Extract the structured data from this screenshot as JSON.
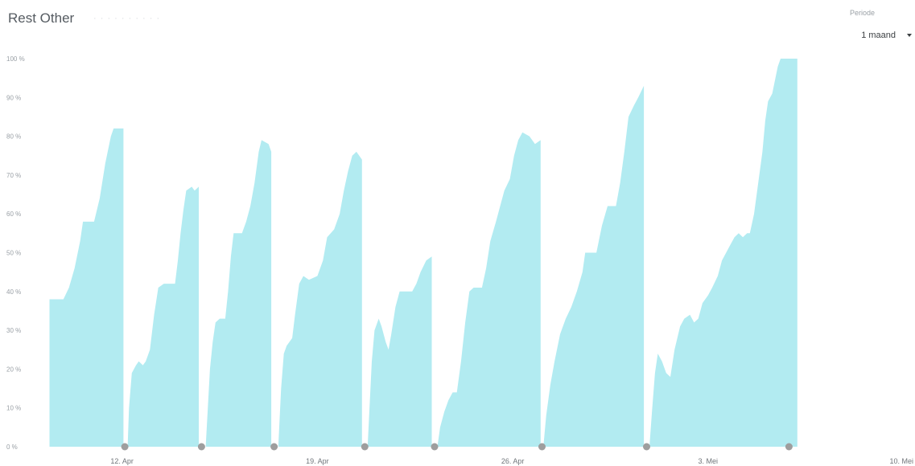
{
  "header": {
    "title": "Rest Other",
    "period": {
      "label": "Periode",
      "selected": "1 maand"
    }
  },
  "colors": {
    "area_fill": "#b2ebf1",
    "gap_marker": "#9e9e9e",
    "tick_text": "#9aa0a6"
  },
  "chart_data": {
    "type": "area",
    "title": "Rest Other",
    "xlabel": "",
    "ylabel": "",
    "y_unit": "%",
    "ylim": [
      0,
      100
    ],
    "y_ticks": [
      "0 %",
      "10 %",
      "20 %",
      "30 %",
      "40 %",
      "50 %",
      "60 %",
      "70 %",
      "80 %",
      "90 %",
      "100 %"
    ],
    "x_range_days": [
      -2.7,
      28.1
    ],
    "x_ticks": [
      {
        "day": 0,
        "label": "12. Apr"
      },
      {
        "day": 7,
        "label": "19. Apr"
      },
      {
        "day": 14,
        "label": "26. Apr"
      },
      {
        "day": 21,
        "label": "3. Mei"
      },
      {
        "day": 28,
        "label": "10. Mei"
      }
    ],
    "segments": [
      {
        "points": [
          [
            -2.6,
            38
          ],
          [
            -2.1,
            38
          ],
          [
            -1.9,
            41
          ],
          [
            -1.7,
            46
          ],
          [
            -1.5,
            53
          ],
          [
            -1.4,
            58
          ],
          [
            -1.0,
            58
          ],
          [
            -0.8,
            64
          ],
          [
            -0.6,
            73
          ],
          [
            -0.4,
            80
          ],
          [
            -0.3,
            82
          ],
          [
            0.05,
            82
          ]
        ]
      },
      {
        "points": [
          [
            0.2,
            0
          ],
          [
            0.25,
            10
          ],
          [
            0.35,
            19
          ],
          [
            0.5,
            21
          ],
          [
            0.6,
            22
          ],
          [
            0.75,
            21
          ],
          [
            0.85,
            22
          ],
          [
            1.0,
            25
          ],
          [
            1.15,
            34
          ],
          [
            1.3,
            41
          ],
          [
            1.5,
            42
          ],
          [
            1.9,
            42
          ],
          [
            2.0,
            48
          ],
          [
            2.1,
            55
          ],
          [
            2.2,
            61
          ],
          [
            2.3,
            66
          ],
          [
            2.5,
            67
          ],
          [
            2.6,
            66
          ],
          [
            2.75,
            67
          ]
        ]
      },
      {
        "points": [
          [
            3.0,
            0
          ],
          [
            3.15,
            20
          ],
          [
            3.25,
            27
          ],
          [
            3.35,
            32
          ],
          [
            3.5,
            33
          ],
          [
            3.7,
            33
          ],
          [
            3.8,
            40
          ],
          [
            3.9,
            49
          ],
          [
            4.0,
            55
          ],
          [
            4.3,
            55
          ],
          [
            4.45,
            58
          ],
          [
            4.6,
            62
          ],
          [
            4.75,
            68
          ],
          [
            4.9,
            76
          ],
          [
            5.0,
            79
          ],
          [
            5.25,
            78
          ],
          [
            5.35,
            76
          ]
        ]
      },
      {
        "points": [
          [
            5.6,
            0
          ],
          [
            5.7,
            15
          ],
          [
            5.8,
            24
          ],
          [
            5.9,
            26
          ],
          [
            6.1,
            28
          ],
          [
            6.2,
            34
          ],
          [
            6.35,
            42
          ],
          [
            6.5,
            44
          ],
          [
            6.7,
            43
          ],
          [
            7.0,
            44
          ],
          [
            7.2,
            48
          ],
          [
            7.35,
            54
          ],
          [
            7.6,
            56
          ],
          [
            7.8,
            60
          ],
          [
            7.95,
            66
          ],
          [
            8.1,
            71
          ],
          [
            8.25,
            75
          ],
          [
            8.4,
            76
          ],
          [
            8.6,
            74
          ]
        ]
      },
      {
        "points": [
          [
            8.8,
            0
          ],
          [
            8.95,
            22
          ],
          [
            9.05,
            30
          ],
          [
            9.2,
            33
          ],
          [
            9.3,
            31
          ],
          [
            9.45,
            27
          ],
          [
            9.55,
            25
          ],
          [
            9.65,
            29
          ],
          [
            9.8,
            36
          ],
          [
            9.95,
            40
          ],
          [
            10.4,
            40
          ],
          [
            10.55,
            42
          ],
          [
            10.7,
            45
          ],
          [
            10.9,
            48
          ],
          [
            11.1,
            49
          ]
        ]
      },
      {
        "points": [
          [
            11.3,
            0
          ],
          [
            11.4,
            5
          ],
          [
            11.55,
            9
          ],
          [
            11.7,
            12
          ],
          [
            11.85,
            14
          ],
          [
            12.0,
            14
          ],
          [
            12.15,
            22
          ],
          [
            12.3,
            32
          ],
          [
            12.45,
            40
          ],
          [
            12.6,
            41
          ],
          [
            12.9,
            41
          ],
          [
            13.05,
            46
          ],
          [
            13.2,
            53
          ],
          [
            13.4,
            58
          ],
          [
            13.55,
            62
          ],
          [
            13.7,
            66
          ],
          [
            13.9,
            69
          ],
          [
            14.05,
            75
          ],
          [
            14.2,
            79
          ],
          [
            14.35,
            81
          ],
          [
            14.6,
            80
          ],
          [
            14.8,
            78
          ],
          [
            15.0,
            79
          ]
        ]
      },
      {
        "points": [
          [
            15.1,
            0
          ],
          [
            15.2,
            8
          ],
          [
            15.35,
            16
          ],
          [
            15.5,
            22
          ],
          [
            15.7,
            29
          ],
          [
            15.9,
            33
          ],
          [
            16.1,
            36
          ],
          [
            16.3,
            40
          ],
          [
            16.5,
            45
          ],
          [
            16.6,
            50
          ],
          [
            17.0,
            50
          ],
          [
            17.2,
            57
          ],
          [
            17.4,
            62
          ],
          [
            17.7,
            62
          ],
          [
            17.85,
            68
          ],
          [
            18.0,
            76
          ],
          [
            18.15,
            85
          ],
          [
            18.35,
            88
          ],
          [
            18.5,
            90
          ],
          [
            18.7,
            93
          ]
        ]
      },
      {
        "points": [
          [
            18.9,
            0
          ],
          [
            19.0,
            10
          ],
          [
            19.1,
            19
          ],
          [
            19.2,
            24
          ],
          [
            19.35,
            22
          ],
          [
            19.5,
            19
          ],
          [
            19.65,
            18
          ],
          [
            19.8,
            25
          ],
          [
            20.0,
            31
          ],
          [
            20.15,
            33
          ],
          [
            20.35,
            34
          ],
          [
            20.5,
            32
          ],
          [
            20.65,
            33
          ],
          [
            20.8,
            37
          ],
          [
            21.0,
            39
          ],
          [
            21.15,
            41
          ],
          [
            21.35,
            44
          ],
          [
            21.5,
            48
          ],
          [
            21.65,
            50
          ],
          [
            21.8,
            52
          ],
          [
            21.95,
            54
          ],
          [
            22.1,
            55
          ],
          [
            22.25,
            54
          ],
          [
            22.4,
            55
          ],
          [
            22.5,
            55
          ],
          [
            22.65,
            60
          ],
          [
            22.8,
            68
          ],
          [
            22.95,
            76
          ],
          [
            23.05,
            84
          ],
          [
            23.15,
            89
          ],
          [
            23.3,
            91
          ],
          [
            23.5,
            98
          ],
          [
            23.6,
            100
          ],
          [
            24.2,
            100
          ]
        ]
      }
    ],
    "gap_markers_day": [
      0.1,
      2.85,
      5.45,
      8.7,
      11.2,
      15.05,
      18.8,
      23.9
    ]
  }
}
